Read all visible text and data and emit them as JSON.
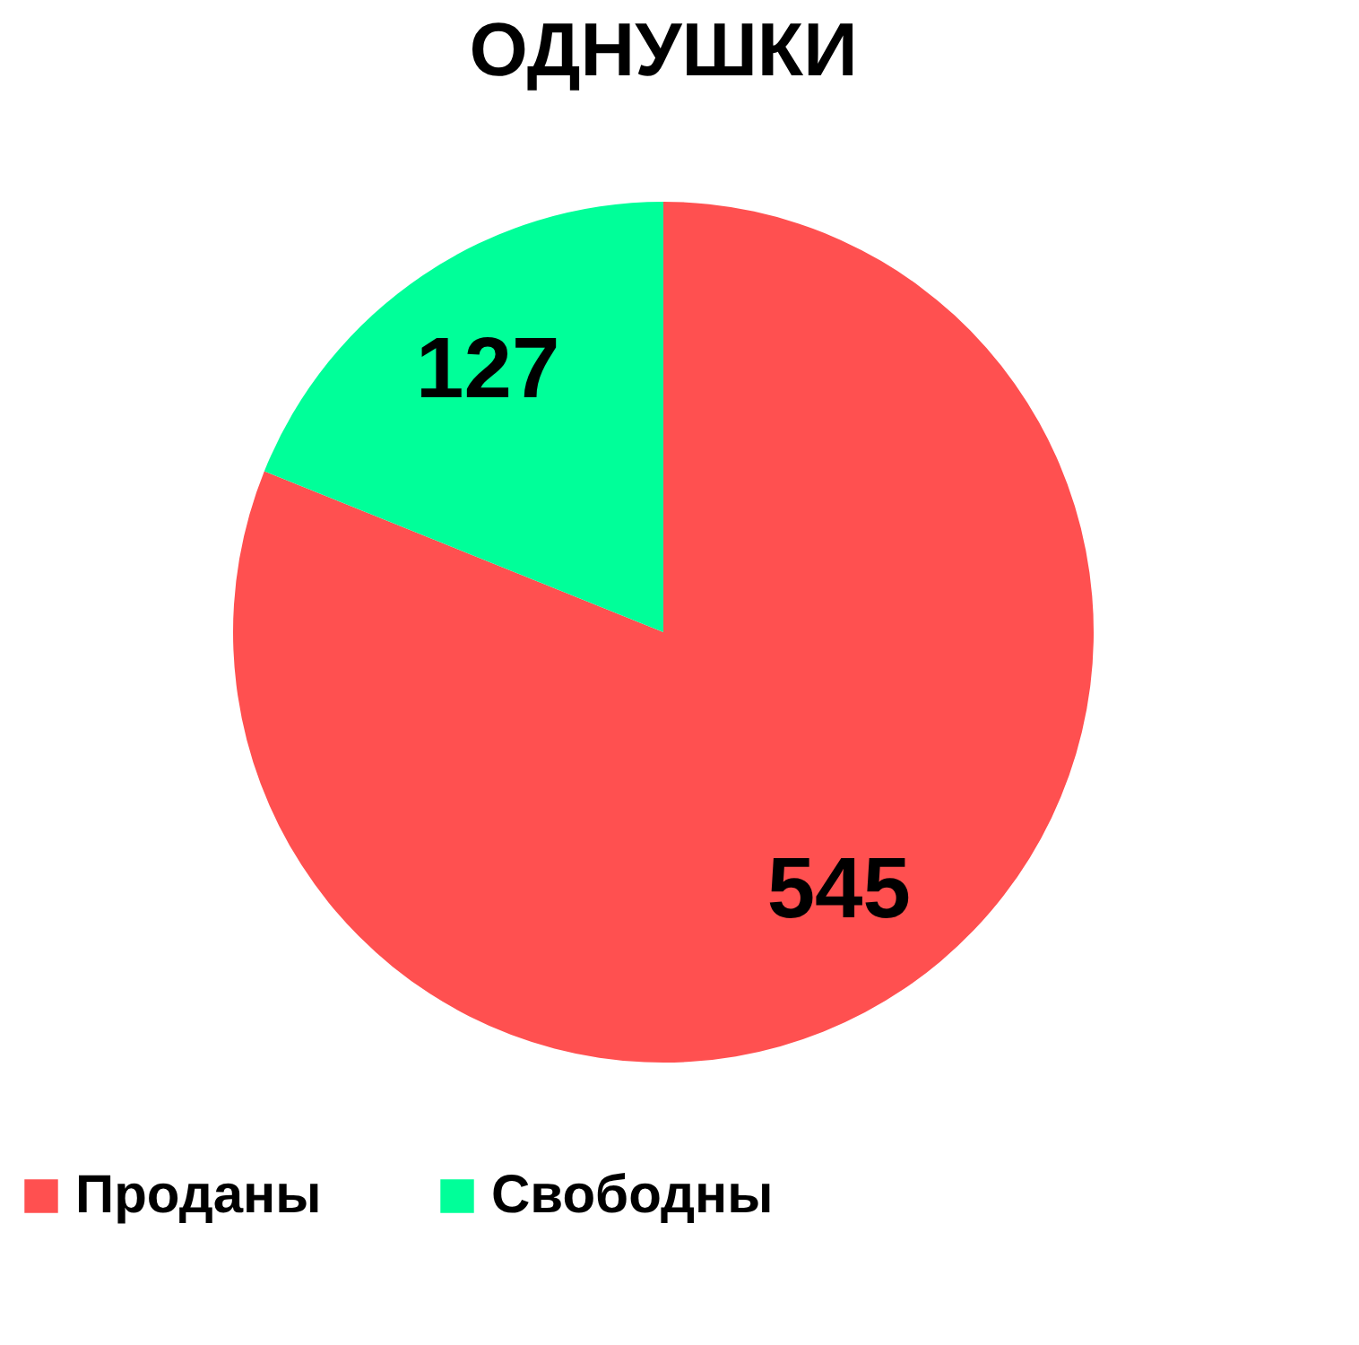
{
  "chart_data": {
    "type": "pie",
    "title": "ОДНУШКИ",
    "categories": [
      "Проданы",
      "Свободны"
    ],
    "values": [
      545,
      127
    ],
    "colors": [
      "#ff5050",
      "#00ff99"
    ],
    "data_labels": true,
    "legend": "bottom"
  }
}
